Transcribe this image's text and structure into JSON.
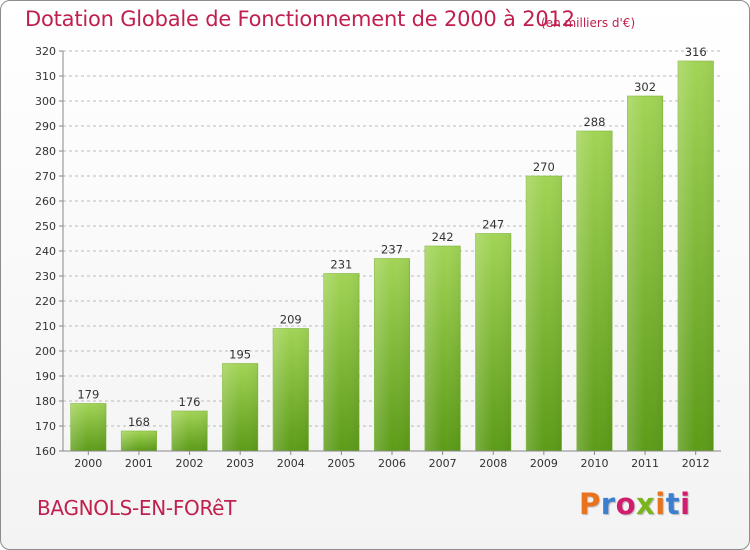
{
  "header": {
    "title": "Dotation Globale de Fonctionnement de 2000 à 2012",
    "unit": "(en milliers d'€)"
  },
  "footer": {
    "commune": "BAGNOLS-EN-FORêT",
    "brand_letters": [
      "P",
      "r",
      "o",
      "x",
      "i",
      "t",
      "i"
    ]
  },
  "colors": {
    "title": "#c0204e",
    "bar_light": "#9fd350",
    "bar_dark": "#5b9a17",
    "grid": "#bbbbbb",
    "brand": [
      "#e8731c",
      "#3c7fd1",
      "#d21c6e",
      "#7ab51d",
      "#e8731c",
      "#3c7fd1",
      "#d21c6e"
    ]
  },
  "chart_data": {
    "type": "bar",
    "categories": [
      "2000",
      "2001",
      "2002",
      "2003",
      "2004",
      "2005",
      "2006",
      "2007",
      "2008",
      "2009",
      "2010",
      "2011",
      "2012"
    ],
    "values": [
      179,
      168,
      176,
      195,
      209,
      231,
      237,
      242,
      247,
      270,
      288,
      302,
      316
    ],
    "data_labels": [
      "179",
      "168",
      "176",
      "195",
      "209",
      "231",
      "237",
      "242",
      "247",
      "270",
      "288",
      "302",
      "316"
    ],
    "title": "Dotation Globale de Fonctionnement de 2000 à 2012",
    "subtitle": "(en milliers d'€)",
    "ylim": [
      160,
      320
    ],
    "yticks": [
      160,
      170,
      180,
      190,
      200,
      210,
      220,
      230,
      240,
      250,
      260,
      270,
      280,
      290,
      300,
      310,
      320
    ],
    "ytick_labels": [
      "160",
      "170",
      "180",
      "190",
      "200",
      "210",
      "220",
      "230",
      "240",
      "250",
      "260",
      "270",
      "280",
      "290",
      "300",
      "310",
      "320"
    ],
    "grid": true,
    "legend": "none"
  }
}
